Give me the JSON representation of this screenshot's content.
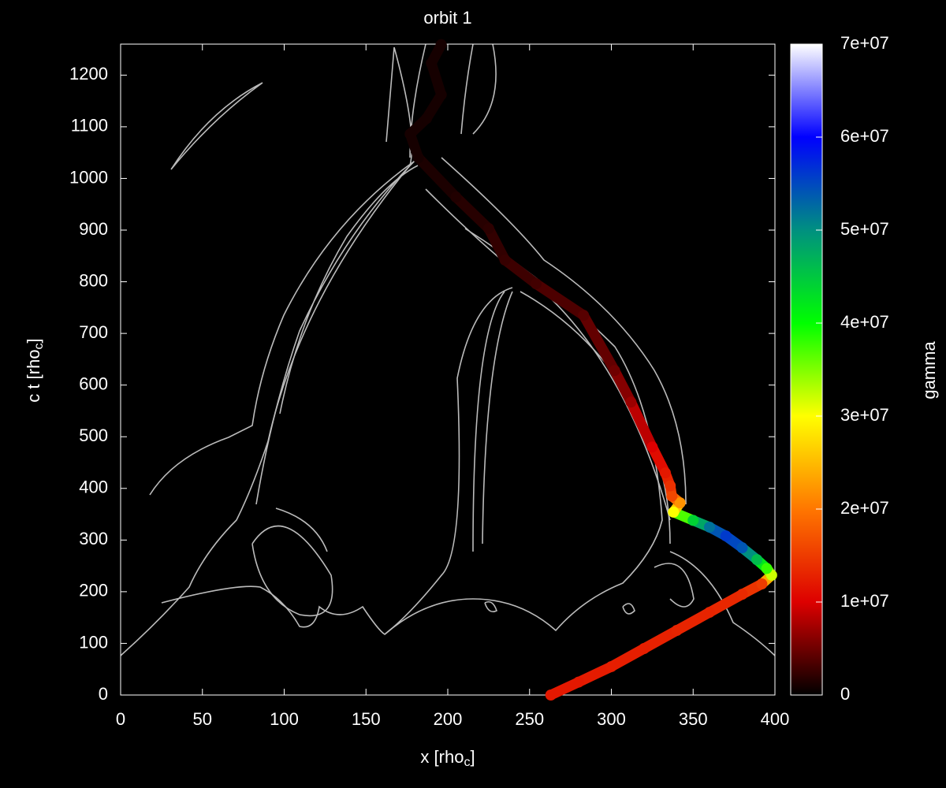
{
  "chart_data": {
    "type": "scatter",
    "title": "orbit 1",
    "x_label": {
      "text": "x [rho",
      "sub": "c",
      "tail": "]"
    },
    "y_label": {
      "text": "c t [rho",
      "sub": "c",
      "tail": "]"
    },
    "xlim": [
      0,
      400
    ],
    "xticks": [
      0,
      50,
      100,
      150,
      200,
      250,
      300,
      350,
      400
    ],
    "ylim": [
      0,
      1260
    ],
    "yticks": [
      0,
      100,
      200,
      300,
      400,
      500,
      600,
      700,
      800,
      900,
      1000,
      1100,
      1200
    ],
    "x": [
      263,
      280,
      300,
      320,
      340,
      360,
      380,
      392,
      398,
      395,
      389,
      380,
      370,
      360,
      350,
      338,
      342,
      337,
      336,
      333,
      325,
      312,
      302,
      283,
      254,
      235,
      225,
      205,
      182,
      177,
      187,
      196,
      190,
      196
    ],
    "values": [
      0,
      25,
      55,
      90,
      125,
      160,
      195,
      215,
      232,
      245,
      262,
      285,
      308,
      325,
      338,
      354,
      372,
      385,
      405,
      430,
      480,
      567,
      628,
      735,
      796,
      842,
      903,
      964,
      1040,
      1086,
      1116,
      1162,
      1223,
      1259
    ],
    "gamma": [
      12000000,
      12000000,
      12500000,
      12500000,
      13000000,
      13000000,
      13500000,
      15000000,
      32000000,
      38000000,
      46000000,
      54000000,
      56000000,
      52000000,
      44000000,
      30000000,
      22000000,
      16000000,
      14000000,
      12000000,
      10000000,
      7000000,
      5000000,
      4000000,
      3000000,
      2500000,
      2000000,
      1500000,
      1000000,
      1000000,
      1000000,
      1000000,
      1000000,
      1000000
    ],
    "colorbar": {
      "label": "gamma",
      "lim": [
        0,
        70000000
      ],
      "ticks": [
        {
          "value": 0,
          "label": "0"
        },
        {
          "value": 10000000,
          "label": "1e+07"
        },
        {
          "value": 20000000,
          "label": "2e+07"
        },
        {
          "value": 30000000,
          "label": "3e+07"
        },
        {
          "value": 40000000,
          "label": "4e+07"
        },
        {
          "value": 50000000,
          "label": "5e+07"
        },
        {
          "value": 60000000,
          "label": "6e+07"
        },
        {
          "value": 70000000,
          "label": "7e+07"
        }
      ],
      "colors": [
        "#000000",
        "#dd0000",
        "#ff7700",
        "#ffff00",
        "#00ff00",
        "#009080",
        "#0000ff",
        "#ffffff"
      ]
    }
  }
}
